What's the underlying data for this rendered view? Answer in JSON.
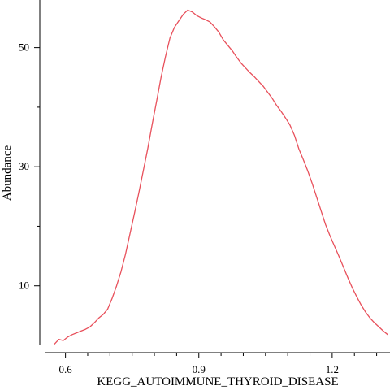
{
  "chart_data": {
    "type": "line",
    "title": "",
    "xlabel": "KEGG_AUTOIMMUNE_THYROID_DISEASE",
    "ylabel": "Abundance",
    "xlim": [
      0.555,
      1.33
    ],
    "ylim": [
      0.0,
      58.0
    ],
    "x_ticks_major": [
      0.6,
      0.9,
      1.2
    ],
    "x_ticks_minor": [
      0.65,
      0.7,
      0.75,
      0.8,
      0.85,
      0.95,
      1.0,
      1.05,
      1.1,
      1.15,
      1.25,
      1.3
    ],
    "y_ticks_major": [
      10,
      30,
      50
    ],
    "y_ticks_minor": [
      20,
      40
    ],
    "grid": false,
    "line_color": "#e8505b",
    "series": [
      {
        "x": [
          0.575,
          0.585,
          0.595,
          0.605,
          0.615,
          0.625,
          0.635,
          0.645,
          0.655,
          0.665,
          0.675,
          0.685,
          0.695,
          0.705,
          0.715,
          0.725,
          0.735,
          0.745,
          0.755,
          0.765,
          0.775,
          0.785,
          0.795,
          0.805,
          0.815,
          0.825,
          0.835,
          0.845,
          0.855,
          0.865,
          0.875,
          0.885,
          0.895,
          0.905,
          0.915,
          0.925,
          0.935,
          0.945,
          0.955,
          0.965,
          0.975,
          0.985,
          0.995,
          1.005,
          1.015,
          1.025,
          1.035,
          1.045,
          1.055,
          1.065,
          1.075,
          1.085,
          1.095,
          1.105,
          1.115,
          1.125,
          1.135,
          1.145,
          1.155,
          1.165,
          1.175,
          1.185,
          1.195,
          1.205,
          1.215,
          1.225,
          1.235,
          1.245,
          1.255,
          1.265,
          1.275,
          1.285,
          1.295,
          1.305,
          1.315,
          1.325
        ],
        "values": [
          0.2,
          1.0,
          0.8,
          1.4,
          1.8,
          2.1,
          2.4,
          2.7,
          3.1,
          3.8,
          4.6,
          5.2,
          6.1,
          7.9,
          10.0,
          12.4,
          15.3,
          18.7,
          22.1,
          25.6,
          29.3,
          33.0,
          37.1,
          41.0,
          45.0,
          48.5,
          51.6,
          53.4,
          54.5,
          55.6,
          56.3,
          56.0,
          55.4,
          55.0,
          54.7,
          54.3,
          53.5,
          52.6,
          51.3,
          50.4,
          49.5,
          48.4,
          47.4,
          46.6,
          45.8,
          45.1,
          44.3,
          43.5,
          42.5,
          41.5,
          40.3,
          39.3,
          38.2,
          37.0,
          35.3,
          33.0,
          31.2,
          29.3,
          27.2,
          24.9,
          22.6,
          20.3,
          18.4,
          16.7,
          15.0,
          13.2,
          11.4,
          9.7,
          8.2,
          6.8,
          5.6,
          4.6,
          3.8,
          3.1,
          2.4,
          1.8
        ]
      }
    ]
  }
}
